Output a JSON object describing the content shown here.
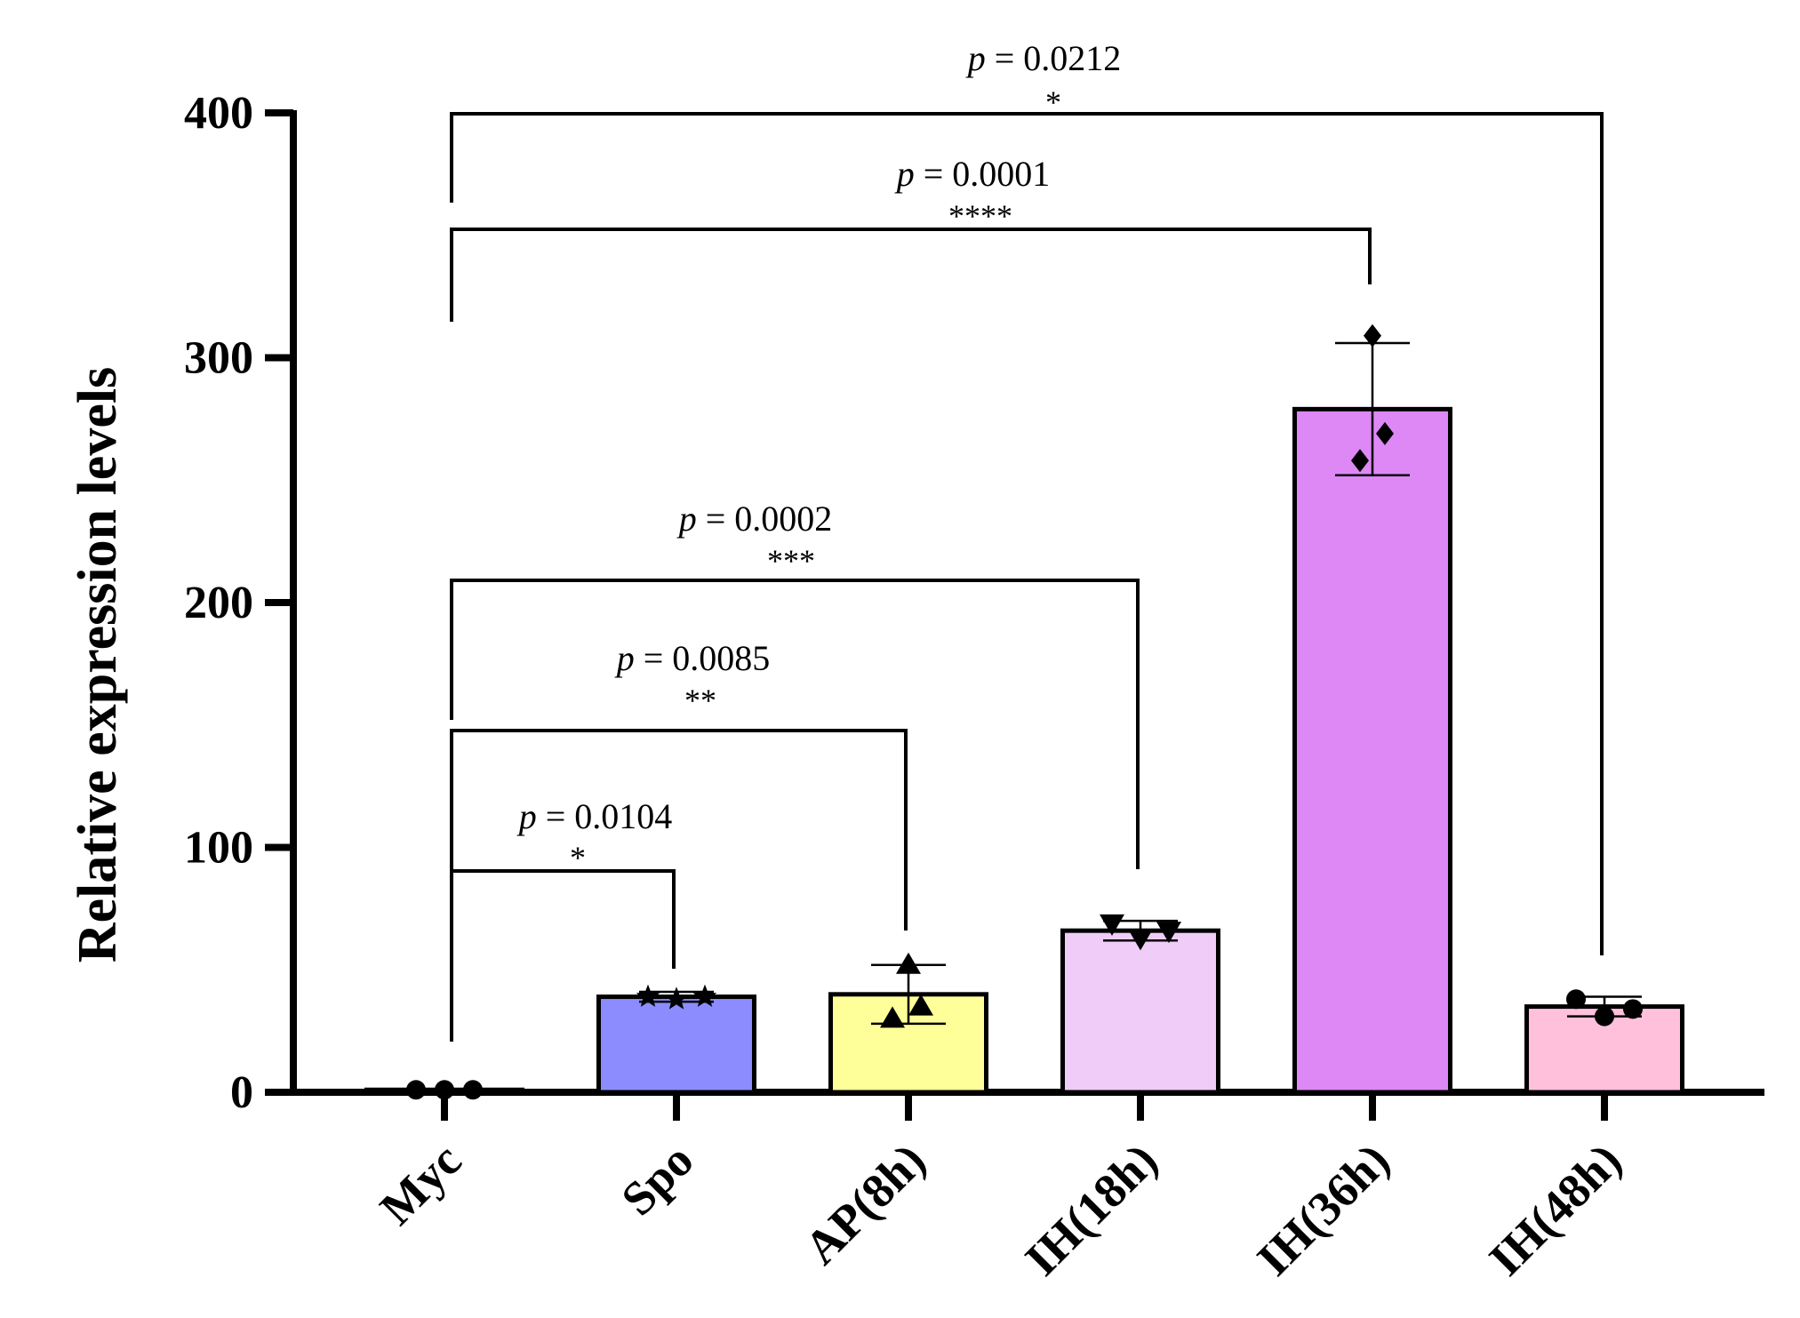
{
  "chart_data": {
    "type": "bar",
    "title": "",
    "xlabel": "",
    "ylabel": "Relative expression levels",
    "ylim": [
      0,
      400
    ],
    "yticks": [
      0,
      100,
      200,
      300,
      400
    ],
    "categories": [
      "Myc",
      "Spo",
      "AP(8h)",
      "IH(18h)",
      "IH(36h)",
      "IH(48h)"
    ],
    "values": [
      1,
      39,
      40,
      66,
      279,
      35
    ],
    "errors": [
      0.5,
      2,
      12,
      4,
      27,
      4
    ],
    "points": [
      [
        1,
        1,
        1
      ],
      [
        39,
        38,
        39
      ],
      [
        52,
        30,
        35
      ],
      [
        69,
        63,
        66
      ],
      [
        309,
        269,
        258
      ],
      [
        38,
        31,
        34
      ]
    ],
    "colors": [
      "#ffffff",
      "#8c8cff",
      "#ffff99",
      "#f0ccf8",
      "#dd88f5",
      "#ffc0dc"
    ],
    "markers": [
      "circle",
      "star",
      "triangle-up",
      "triangle-down",
      "diamond",
      "circle"
    ],
    "comparisons": [
      {
        "from": "Myc",
        "to": "IH(48h)",
        "p": "0.0212",
        "stars": "*"
      },
      {
        "from": "Myc",
        "to": "IH(36h)",
        "p": "0.0001",
        "stars": "****"
      },
      {
        "from": "Myc",
        "to": "IH(18h)",
        "p": "0.0002",
        "stars": "***"
      },
      {
        "from": "Myc",
        "to": "AP(8h)",
        "p": "0.0085",
        "stars": "**"
      },
      {
        "from": "Myc",
        "to": "Spo",
        "p": "0.0104",
        "stars": "*"
      }
    ],
    "p_prefix": "p",
    "p_equals": " = "
  }
}
